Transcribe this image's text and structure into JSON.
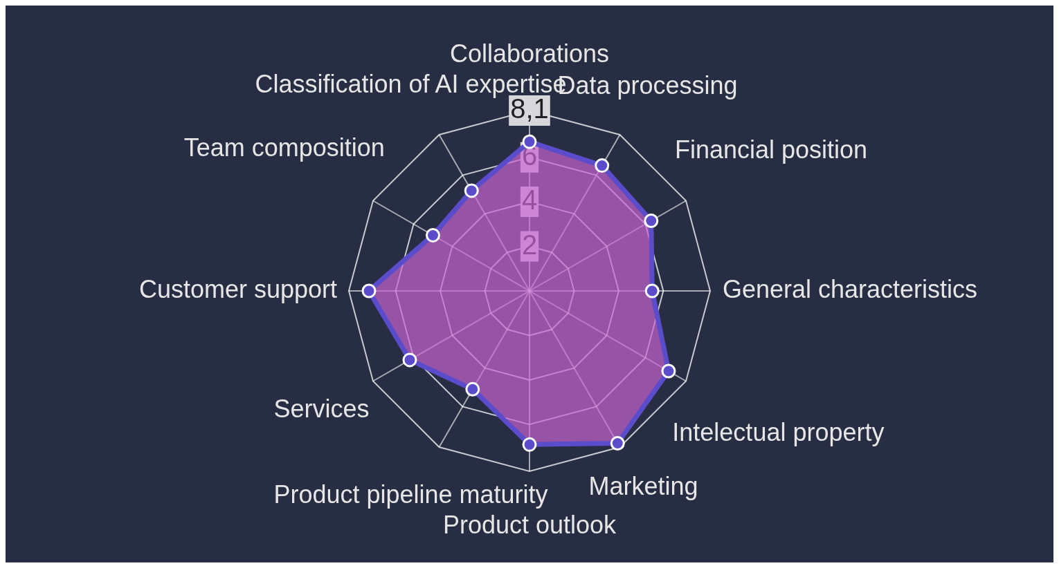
{
  "chart_data": {
    "type": "radar",
    "categories": [
      "Collaborations",
      "Data processing",
      "Financial position",
      "General characteristics",
      "Intelectual property",
      "Marketing",
      "Product outlook",
      "Product pipeline maturity",
      "Services",
      "Customer support",
      "Team composition",
      "Classification of AI expertise"
    ],
    "series": [
      {
        "color": "#5b4ccc",
        "values": [
          6.7,
          6.5,
          6.3,
          5.5,
          7.2,
          7.9,
          6.9,
          5.1,
          6.2,
          7.2,
          5.0,
          5.2
        ]
      }
    ],
    "ylim": [
      0,
      8.1
    ],
    "yticks": [
      2,
      4,
      6,
      {
        "value": 8.1,
        "label": "8,1"
      }
    ],
    "grid": true,
    "legend": false,
    "marker": "circle"
  }
}
